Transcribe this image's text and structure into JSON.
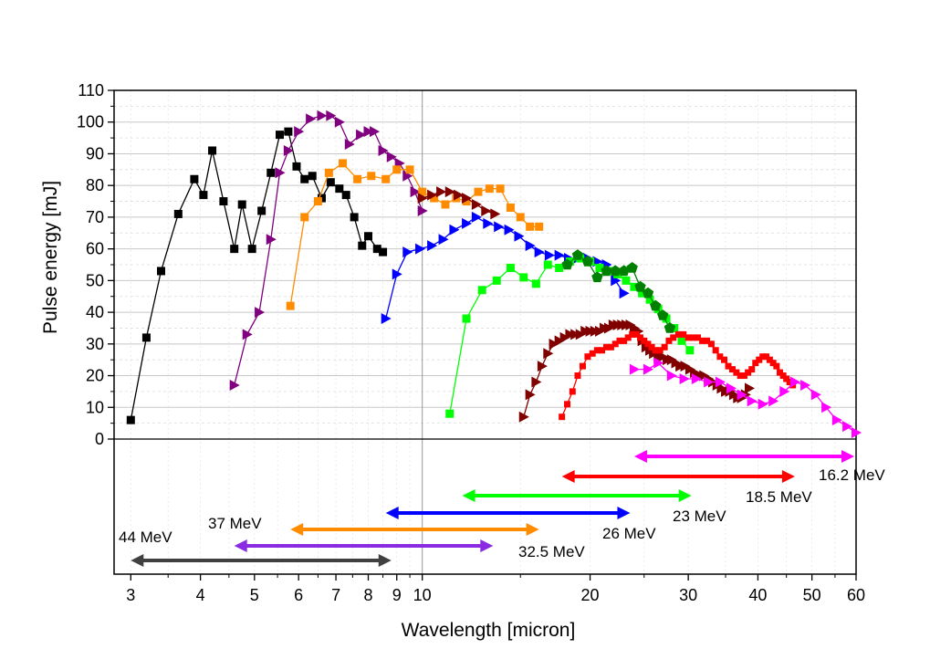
{
  "chart_data": {
    "type": "scatter",
    "x_scale": "log",
    "xlabel": "Wavelength [micron]",
    "ylabel": "Pulse energy [mJ]",
    "xlim": [
      2.8,
      60
    ],
    "ylim": [
      0,
      110
    ],
    "x_ticks": [
      3,
      4,
      5,
      6,
      7,
      8,
      9,
      10,
      20,
      30,
      40,
      50,
      60
    ],
    "y_ticks": [
      0,
      10,
      20,
      30,
      40,
      50,
      60,
      70,
      80,
      90,
      100,
      110
    ],
    "grid": true,
    "series": [
      {
        "marker": "square",
        "color": "#000000",
        "x": [
          3.0,
          3.2,
          3.4,
          3.65,
          3.9,
          4.05,
          4.2,
          4.4,
          4.6,
          4.75,
          4.95,
          5.15,
          5.35,
          5.55,
          5.75,
          5.95,
          6.15,
          6.35,
          6.6,
          6.85,
          7.1,
          7.3,
          7.55,
          7.8,
          8.0,
          8.3,
          8.5
        ],
        "y": [
          6,
          32,
          53,
          71,
          82,
          77,
          91,
          75,
          60,
          74,
          60,
          72,
          84,
          96,
          97,
          86,
          82,
          83,
          76,
          81,
          79,
          77,
          70,
          61,
          64,
          60,
          59
        ]
      },
      {
        "marker": "triangle-right",
        "color": "#800080",
        "x": [
          4.6,
          4.85,
          5.1,
          5.35,
          5.55,
          5.75,
          6.0,
          6.3,
          6.6,
          6.85,
          7.1,
          7.4,
          7.75,
          8.0,
          8.2,
          8.5,
          8.8,
          9.1,
          9.4,
          9.7,
          10.0
        ],
        "y": [
          17,
          33,
          40,
          63,
          84,
          91,
          97,
          101,
          102,
          102,
          100,
          93,
          96,
          97,
          97,
          91,
          89,
          87,
          83,
          78,
          72
        ]
      },
      {
        "marker": "square",
        "color": "#ff8c00",
        "x": [
          5.8,
          6.15,
          6.5,
          6.8,
          7.2,
          7.65,
          8.1,
          8.6,
          9.0,
          9.5,
          10.0,
          10.5,
          11.0,
          11.5,
          12.0,
          12.6,
          13.2,
          13.8,
          14.4,
          15.0,
          15.6,
          16.2
        ],
        "y": [
          42,
          70,
          75,
          84,
          87,
          82,
          83,
          82,
          85,
          85,
          78,
          76,
          74,
          76,
          75,
          78,
          79,
          79,
          73,
          70,
          67,
          67
        ]
      },
      {
        "marker": "triangle-right",
        "color": "#800000",
        "x": [
          10.0,
          10.4,
          10.8,
          11.2,
          11.6,
          12.0,
          12.5,
          13.0,
          13.5
        ],
        "y": [
          76,
          77,
          78,
          78,
          77,
          76,
          74,
          72,
          71
        ]
      },
      {
        "marker": "triangle-right",
        "color": "#0000ff",
        "x": [
          8.6,
          9.0,
          9.4,
          9.9,
          10.4,
          10.9,
          11.4,
          12.0,
          12.5,
          13.1,
          13.7,
          14.3,
          14.9,
          15.6,
          16.2,
          16.9,
          17.6,
          18.3,
          19.0,
          19.8,
          20.6,
          21.4,
          22.2,
          23.0
        ],
        "y": [
          38,
          52,
          59,
          60,
          61,
          63,
          66,
          68,
          70,
          68,
          67,
          66,
          64,
          61,
          59,
          58,
          58,
          57,
          57,
          57,
          56,
          55,
          50,
          46
        ]
      },
      {
        "marker": "square",
        "color": "#00ff00",
        "x": [
          11.2,
          12.0,
          12.8,
          13.6,
          14.4,
          15.2,
          16.0,
          16.8,
          17.6,
          18.4,
          19.2,
          20.0,
          20.8,
          21.6,
          22.4,
          23.2,
          24.0,
          24.8,
          25.6,
          26.5,
          27.4,
          28.3,
          29.2,
          30.2
        ],
        "y": [
          8,
          38,
          47,
          50,
          54,
          51,
          49,
          55,
          54,
          56,
          57,
          56,
          54,
          53,
          52,
          50,
          48,
          46,
          44,
          41,
          38,
          35,
          31,
          28
        ]
      },
      {
        "marker": "pentagon",
        "color": "#008000",
        "x": [
          18.2,
          19.0,
          19.8,
          20.6,
          21.4,
          22.2,
          23.0,
          23.8,
          24.6,
          25.4,
          26.2,
          27.0,
          27.8
        ],
        "y": [
          55,
          58,
          56,
          51,
          53,
          53,
          53,
          54,
          48,
          46,
          42,
          39,
          35
        ]
      },
      {
        "marker": "triangle-right",
        "color": "#800000",
        "x": [
          15.2,
          15.6,
          16.0,
          16.4,
          16.8,
          17.2,
          17.6,
          18.0,
          18.4,
          18.8,
          19.2,
          19.6,
          20.0,
          20.4,
          20.8,
          21.2,
          21.6,
          22.0,
          22.4,
          22.8,
          23.2,
          23.6,
          24.0,
          24.4,
          24.8,
          25.2,
          25.6,
          26.0,
          26.5,
          27.0,
          27.5,
          28.0,
          28.5,
          29.0,
          29.6,
          30.2,
          30.8,
          31.4,
          32.0,
          32.6,
          33.2,
          33.8,
          34.4,
          35.0,
          35.6,
          36.2,
          36.8,
          37.4,
          38.0,
          38.6
        ],
        "y": [
          7,
          14,
          18,
          23,
          27,
          30,
          31,
          32,
          33,
          33,
          33,
          34,
          34,
          34,
          34,
          35,
          35,
          36,
          36,
          36,
          36,
          36,
          35,
          34,
          31,
          29,
          28,
          27,
          26,
          26,
          25,
          25,
          24,
          23,
          23,
          22,
          21,
          20,
          20,
          19,
          18,
          17,
          16,
          15,
          15,
          14,
          13,
          13,
          14,
          16
        ]
      },
      {
        "marker": "square-small",
        "color": "#ff0000",
        "x": [
          17.8,
          18.2,
          18.6,
          19.0,
          19.4,
          19.8,
          20.2,
          20.6,
          21.0,
          21.4,
          21.8,
          22.2,
          22.6,
          23.0,
          23.4,
          23.8,
          24.2,
          24.6,
          25.0,
          25.4,
          25.8,
          26.2,
          26.7,
          27.2,
          27.7,
          28.2,
          28.8,
          29.4,
          30.0,
          30.6,
          31.2,
          31.8,
          32.4,
          33.0,
          33.6,
          34.2,
          34.8,
          35.4,
          36.0,
          36.6,
          37.2,
          37.8,
          38.4,
          39.0,
          39.6,
          40.2,
          40.8,
          41.4,
          42.0,
          42.6,
          43.2,
          43.8,
          44.4,
          45.0,
          45.6,
          46.2
        ],
        "y": [
          7,
          11,
          15,
          20,
          23,
          26,
          27,
          28,
          28,
          29,
          29,
          30,
          31,
          31,
          32,
          33,
          33,
          32,
          31,
          30,
          29,
          28,
          28,
          29,
          31,
          32,
          33,
          33,
          32,
          32,
          32,
          31,
          31,
          30,
          28,
          26,
          25,
          23,
          22,
          21,
          20,
          20,
          21,
          22,
          24,
          25,
          26,
          26,
          25,
          24,
          23,
          21,
          20,
          19,
          18,
          17
        ]
      },
      {
        "marker": "triangle-right",
        "color": "#ff00ff",
        "x": [
          24.0,
          25.4,
          26.5,
          28.0,
          29.5,
          31.0,
          32.6,
          34.2,
          35.8,
          37.4,
          39.0,
          40.8,
          42.6,
          44.6,
          46.6,
          48.6,
          50.8,
          53.0,
          55.4,
          57.8,
          60.0
        ],
        "y": [
          22,
          22,
          24,
          20,
          19,
          19,
          18,
          18,
          16,
          14,
          12,
          11,
          12,
          15,
          18,
          17,
          14,
          10,
          6,
          4,
          2
        ]
      }
    ],
    "ranges": [
      {
        "label": "16.2 MeV",
        "color": "#ff00ff",
        "x": [
          24.0,
          60.0
        ]
      },
      {
        "label": "18.5 MeV",
        "color": "#ff0000",
        "x": [
          17.8,
          46.6
        ]
      },
      {
        "label": "23 MeV",
        "color": "#00ff00",
        "x": [
          11.8,
          30.4
        ]
      },
      {
        "label": "26 MeV",
        "color": "#0000ff",
        "x": [
          8.6,
          23.6
        ]
      },
      {
        "label": "32.5 MeV",
        "color": "#ff8c00",
        "x": [
          5.8,
          16.2
        ]
      },
      {
        "label": "37 MeV",
        "color": "#8a2be2",
        "x": [
          4.6,
          13.4
        ]
      },
      {
        "label": "44 MeV",
        "color": "#404040",
        "x": [
          3.0,
          8.8
        ]
      }
    ]
  }
}
